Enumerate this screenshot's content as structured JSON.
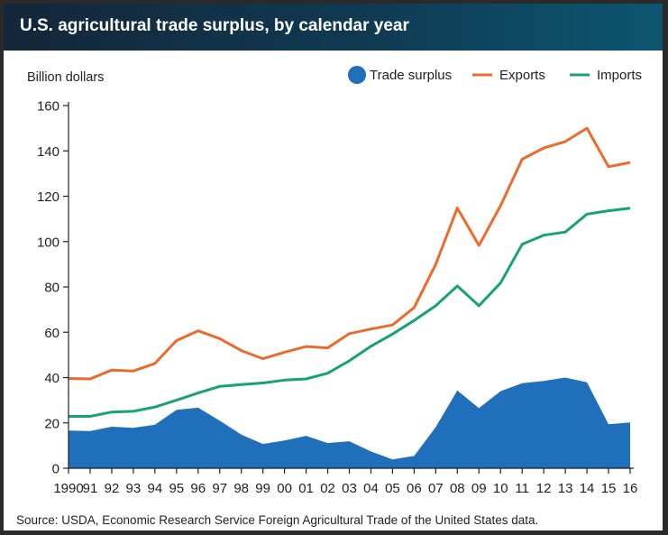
{
  "colors": {
    "surplus": "#1f6fba",
    "exports": "#ea6b2d",
    "imports": "#17a273",
    "axis": "#222222",
    "title_bar": "#0f3a52"
  },
  "header": {
    "title": "U.S. agricultural trade surplus, by calendar year"
  },
  "footer": {
    "source": "Source: USDA, Economic Research Service Foreign Agricultural Trade of the United States data."
  },
  "chart_data": {
    "type": "area",
    "title": "U.S. agricultural trade surplus, by calendar year",
    "ylabel": "Billion dollars",
    "xlabel": "",
    "ylim": [
      0,
      160
    ],
    "y_ticks": [
      "0",
      "20",
      "40",
      "60",
      "80",
      "100",
      "120",
      "140",
      "160"
    ],
    "grid": false,
    "legend_position": "top-right",
    "categories": [
      "1990",
      "91",
      "92",
      "93",
      "94",
      "95",
      "96",
      "97",
      "98",
      "99",
      "00",
      "01",
      "02",
      "03",
      "04",
      "05",
      "06",
      "07",
      "08",
      "09",
      "10",
      "11",
      "12",
      "13",
      "14",
      "15",
      "16"
    ],
    "series": [
      {
        "name": "Trade surplus",
        "kind": "area",
        "values": [
          16.6,
          16.4,
          18.3,
          17.8,
          19.2,
          25.8,
          26.7,
          21.0,
          14.8,
          10.7,
          12.2,
          14.3,
          11.1,
          11.9,
          7.4,
          3.9,
          5.4,
          18.1,
          34.3,
          26.5,
          34.0,
          37.5,
          38.5,
          40.0,
          37.9,
          19.4,
          20.2
        ]
      },
      {
        "name": "Exports",
        "kind": "line",
        "values": [
          39.6,
          39.4,
          43.3,
          42.9,
          46.2,
          56.3,
          60.6,
          57.2,
          51.9,
          48.3,
          51.2,
          53.7,
          53.1,
          59.4,
          61.4,
          63.2,
          70.9,
          89.9,
          114.8,
          98.3,
          115.8,
          136.3,
          141.3,
          144.1,
          150.0,
          133.0,
          134.9
        ]
      },
      {
        "name": "Imports",
        "kind": "line",
        "values": [
          22.9,
          22.9,
          24.8,
          25.1,
          27.0,
          30.0,
          33.2,
          36.1,
          36.9,
          37.6,
          38.9,
          39.4,
          41.9,
          47.4,
          53.8,
          59.2,
          65.2,
          71.7,
          80.4,
          71.7,
          81.7,
          98.8,
          102.8,
          104.2,
          112.1,
          113.6,
          114.7
        ]
      }
    ]
  }
}
